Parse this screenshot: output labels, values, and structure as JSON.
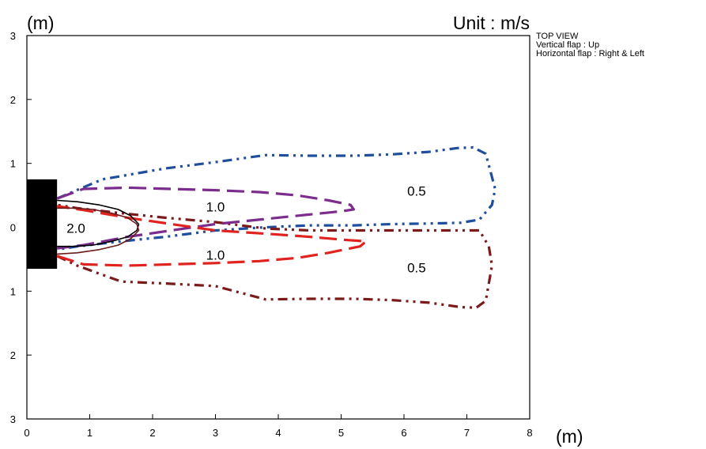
{
  "chart_data": {
    "type": "line",
    "title": "",
    "xlabel": "(m)",
    "ylabel": "(m)",
    "unit_label": "Unit : m/s",
    "xlim": [
      0,
      8
    ],
    "ylim": [
      -3,
      3
    ],
    "x_ticks": [
      "0",
      "1",
      "2",
      "3",
      "4",
      "5",
      "6",
      "7",
      "8"
    ],
    "y_ticks": [
      {
        "value": 3,
        "label": "3"
      },
      {
        "value": 2,
        "label": "2"
      },
      {
        "value": 1,
        "label": "1"
      },
      {
        "value": 0,
        "label": "0"
      },
      {
        "value": -1,
        "label": "1"
      },
      {
        "value": -2,
        "label": "2"
      },
      {
        "value": -3,
        "label": "3"
      }
    ],
    "grid": false,
    "unit_block": {
      "x": [
        0,
        0.48
      ],
      "y": [
        -0.65,
        0.75
      ],
      "color": "#000000"
    },
    "series": [
      {
        "key": "upper_0_5",
        "color": "#1f4e9c",
        "style": "dash-dot-dot",
        "x": [
          0.48,
          1.2,
          2.2,
          3.0,
          3.8,
          4.5,
          5.2,
          5.8,
          6.4,
          6.85,
          7.1,
          7.3,
          7.45,
          7.4,
          7.2,
          6.9,
          6.5,
          5.8,
          5.2,
          4.5,
          3.8,
          3.0,
          2.2,
          1.5,
          0.8,
          0.48
        ],
        "y": [
          0.45,
          0.75,
          0.92,
          1.02,
          1.13,
          1.12,
          1.12,
          1.14,
          1.18,
          1.24,
          1.25,
          1.15,
          0.6,
          0.35,
          0.12,
          0.07,
          0.06,
          0.05,
          0.03,
          0.03,
          0.0,
          -0.05,
          -0.15,
          -0.22,
          -0.3,
          -0.35
        ]
      },
      {
        "key": "lower_0_5",
        "color": "#7a1a1a",
        "style": "dash-dot-dot",
        "x": [
          0.48,
          0.8,
          1.5,
          2.2,
          3.0,
          3.8,
          4.5,
          5.2,
          5.8,
          6.4,
          6.9,
          7.15,
          7.3,
          7.4,
          7.35,
          7.2,
          6.9,
          6.5,
          5.8,
          5.2,
          4.5,
          3.8,
          3.0,
          2.2,
          1.5,
          0.8,
          0.48
        ],
        "y": [
          -0.45,
          -0.6,
          -0.85,
          -0.88,
          -0.92,
          -1.13,
          -1.12,
          -1.12,
          -1.14,
          -1.18,
          -1.25,
          -1.26,
          -1.15,
          -0.6,
          -0.3,
          -0.05,
          -0.05,
          -0.05,
          -0.05,
          -0.05,
          -0.05,
          -0.02,
          0.08,
          0.15,
          0.22,
          0.3,
          0.35
        ]
      },
      {
        "key": "upper_1_0",
        "color": "#7b2c8c",
        "style": "long-dash",
        "x": [
          0.48,
          0.9,
          1.6,
          2.3,
          3.0,
          3.7,
          4.3,
          4.8,
          5.15,
          5.2,
          5.0,
          4.5,
          3.8,
          3.0,
          2.3,
          1.6,
          0.9,
          0.48
        ],
        "y": [
          0.45,
          0.6,
          0.62,
          0.6,
          0.58,
          0.55,
          0.5,
          0.42,
          0.35,
          0.28,
          0.25,
          0.2,
          0.13,
          0.05,
          -0.05,
          -0.15,
          -0.28,
          -0.33
        ]
      },
      {
        "key": "lower_1_0",
        "color": "#e0231e",
        "style": "long-dash",
        "x": [
          0.48,
          0.9,
          1.6,
          2.3,
          3.0,
          3.7,
          4.3,
          4.8,
          5.3,
          5.4,
          5.1,
          4.5,
          3.8,
          3.0,
          2.3,
          1.6,
          0.9,
          0.48
        ],
        "y": [
          -0.45,
          -0.58,
          -0.6,
          -0.58,
          -0.56,
          -0.53,
          -0.48,
          -0.4,
          -0.3,
          -0.22,
          -0.2,
          -0.15,
          -0.1,
          -0.05,
          0.05,
          0.15,
          0.27,
          0.33
        ]
      },
      {
        "key": "upper_2_0",
        "color": "#000000",
        "style": "solid",
        "x": [
          0.48,
          0.8,
          1.15,
          1.45,
          1.65,
          1.78,
          1.75,
          1.6,
          1.35,
          1.05,
          0.75,
          0.48
        ],
        "y": [
          0.42,
          0.4,
          0.35,
          0.28,
          0.18,
          0.05,
          -0.05,
          -0.15,
          -0.22,
          -0.28,
          -0.3,
          -0.3
        ]
      },
      {
        "key": "lower_2_0",
        "color": "#6b1a1a",
        "style": "solid",
        "x": [
          0.48,
          0.8,
          1.15,
          1.45,
          1.65,
          1.78,
          1.75,
          1.6,
          1.35,
          1.05,
          0.75,
          0.48
        ],
        "y": [
          -0.42,
          -0.4,
          -0.35,
          -0.28,
          -0.18,
          -0.05,
          0.05,
          0.15,
          0.22,
          0.28,
          0.3,
          0.3
        ]
      }
    ],
    "annotations": [
      {
        "text": "0.5",
        "x": 6.2,
        "y": 0.55
      },
      {
        "text": "0.5",
        "x": 6.2,
        "y": -0.65
      },
      {
        "text": "1.0",
        "x": 3.0,
        "y": 0.3
      },
      {
        "text": "1.0",
        "x": 3.0,
        "y": -0.45
      },
      {
        "text": "2.0",
        "x": 0.78,
        "y": -0.03
      }
    ]
  },
  "notes": {
    "line1": "TOP VIEW",
    "line2": "Vertical flap : Up",
    "line3": "Horizontal flap : Right & Left"
  }
}
